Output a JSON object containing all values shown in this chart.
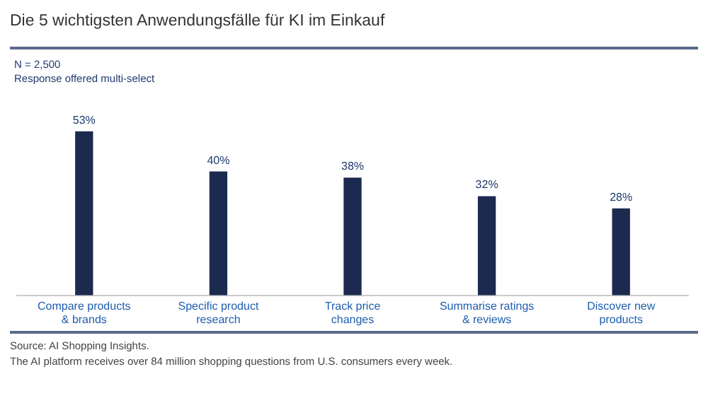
{
  "chart_data": {
    "type": "bar",
    "title": "Die 5 wichtigsten Anwendungsfälle für KI im Einkauf",
    "subtitle": "N = 2,500\nResponse offered multi-select",
    "categories": [
      "Compare products\n& brands",
      "Specific product\nresearch",
      "Track price\nchanges",
      "Summarise ratings\n& reviews",
      "Discover new\nproducts"
    ],
    "values": [
      53,
      40,
      38,
      32,
      28
    ],
    "value_labels": [
      "53%",
      "40%",
      "38%",
      "32%",
      "28%"
    ],
    "color": "#1b2a4e",
    "grid": false,
    "legend": false,
    "annotations": [
      "Source: AI Shopping Insights.",
      "The AI platform receives over 84 million shopping questions from U.S. consumers every week."
    ]
  }
}
